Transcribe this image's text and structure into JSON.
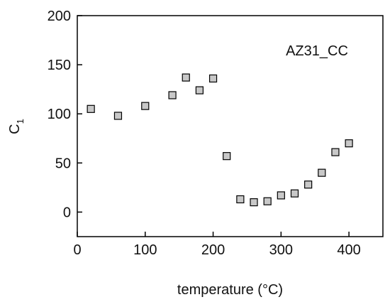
{
  "chart_data": {
    "type": "scatter",
    "xlabel": "temperature (°C)",
    "ylabel_main": "C",
    "ylabel_sub": "1",
    "annotation": "AZ31_CC",
    "xlim": [
      0,
      450
    ],
    "ylim": [
      -25,
      200
    ],
    "xticks": [
      0,
      100,
      200,
      300,
      400
    ],
    "yticks": [
      0,
      50,
      100,
      150,
      200
    ],
    "grid": false,
    "marker": "square",
    "marker_fill": "#c8c8c8",
    "marker_stroke": "#000000",
    "series": [
      {
        "x": [
          20,
          60,
          100,
          140,
          160,
          180,
          200,
          220,
          240,
          260,
          280,
          300,
          320,
          340,
          360,
          380,
          400
        ],
        "y": [
          105,
          98,
          108,
          119,
          137,
          124,
          136,
          57,
          13,
          10,
          11,
          17,
          19,
          28,
          40,
          61,
          70
        ]
      }
    ]
  }
}
